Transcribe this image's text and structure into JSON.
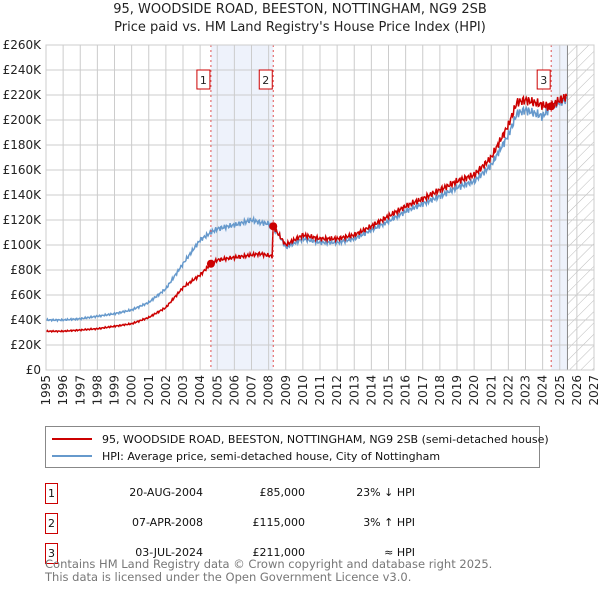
{
  "title": "95, WOODSIDE ROAD, BEESTON, NOTTINGHAM, NG9 2SB",
  "subtitle": "Price paid vs. HM Land Registry's House Price Index (HPI)",
  "chart_data": {
    "type": "line",
    "title": "95, WOODSIDE ROAD, BEESTON, NOTTINGHAM, NG9 2SB",
    "ylim": [
      0,
      260000
    ],
    "xlim": [
      1995,
      2027
    ],
    "yticks": [
      "£0",
      "£20K",
      "£40K",
      "£60K",
      "£80K",
      "£100K",
      "£120K",
      "£140K",
      "£160K",
      "£180K",
      "£200K",
      "£220K",
      "£240K",
      "£260K"
    ],
    "xticks": [
      "1995",
      "1996",
      "1997",
      "1998",
      "1999",
      "2000",
      "2001",
      "2002",
      "2003",
      "2004",
      "2005",
      "2006",
      "2007",
      "2008",
      "2009",
      "2010",
      "2011",
      "2012",
      "2013",
      "2014",
      "2015",
      "2016",
      "2017",
      "2018",
      "2019",
      "2020",
      "2021",
      "2022",
      "2023",
      "2024",
      "2025",
      "2026",
      "2027"
    ],
    "series": [
      {
        "name": "95, WOODSIDE ROAD, BEESTON, NOTTINGHAM, NG9 2SB (semi-detached house)",
        "color": "#cc0000",
        "x": [
          1995,
          1996,
          1997,
          1998,
          1999,
          2000,
          2001,
          2002,
          2003,
          2004,
          2004.63,
          2005,
          2006,
          2007,
          2007.5,
          2008.2,
          2008.27,
          2008.6,
          2009,
          2010,
          2011,
          2012,
          2013,
          2014,
          2015,
          2016,
          2017,
          2018,
          2019,
          2020,
          2021,
          2022,
          2022.5,
          2023,
          2024,
          2024.5,
          2025,
          2025.4
        ],
        "y": [
          31000,
          31000,
          32000,
          33000,
          35000,
          37000,
          42000,
          50000,
          66000,
          76000,
          85000,
          88000,
          90000,
          92000,
          93000,
          91000,
          115000,
          108000,
          100000,
          108000,
          105000,
          105000,
          108000,
          115000,
          123000,
          131000,
          137000,
          144000,
          151000,
          156000,
          170000,
          196000,
          214000,
          216000,
          212000,
          211000,
          216000,
          219000
        ]
      },
      {
        "name": "HPI: Average price, semi-detached house, City of Nottingham",
        "color": "#6699cc",
        "x": [
          1995,
          1996,
          1997,
          1998,
          1999,
          2000,
          2001,
          2002,
          2003,
          2004,
          2004.63,
          2005,
          2006,
          2007,
          2007.5,
          2008,
          2008.6,
          2009,
          2010,
          2011,
          2012,
          2013,
          2014,
          2015,
          2016,
          2017,
          2018,
          2019,
          2020,
          2021,
          2022,
          2022.5,
          2023,
          2024,
          2024.5,
          2025,
          2025.4
        ],
        "y": [
          40000,
          40000,
          41000,
          43000,
          45000,
          48000,
          54000,
          65000,
          85000,
          104000,
          110000,
          113000,
          116000,
          120000,
          118000,
          117000,
          108000,
          98000,
          105000,
          102000,
          102000,
          105000,
          112000,
          119000,
          127000,
          133000,
          139000,
          146000,
          151000,
          164000,
          188000,
          205000,
          208000,
          203000,
          211000,
          214000,
          217000
        ]
      }
    ],
    "sales": [
      {
        "num": "1",
        "x": 2004.63,
        "price": 85000
      },
      {
        "num": "2",
        "x": 2008.27,
        "price": 115000
      },
      {
        "num": "3",
        "x": 2024.5,
        "price": 211000
      }
    ],
    "forecast_start": 2025.45
  },
  "legend": {
    "red": "95, WOODSIDE ROAD, BEESTON, NOTTINGHAM, NG9 2SB (semi-detached house)",
    "blue": "HPI: Average price, semi-detached house, City of Nottingham"
  },
  "transactions": [
    {
      "num": "1",
      "date": "20-AUG-2004",
      "price": "£85,000",
      "hpi": "23% ↓ HPI"
    },
    {
      "num": "2",
      "date": "07-APR-2008",
      "price": "£115,000",
      "hpi": "3% ↑ HPI"
    },
    {
      "num": "3",
      "date": "03-JUL-2024",
      "price": "£211,000",
      "hpi": "≈ HPI"
    }
  ],
  "footer": [
    "Contains HM Land Registry data © Crown copyright and database right 2025.",
    "This data is licensed under the Open Government Licence v3.0."
  ]
}
